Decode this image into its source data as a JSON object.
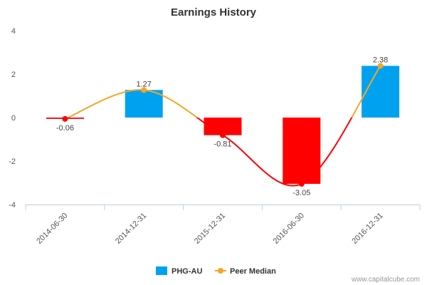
{
  "chart_data": {
    "type": "bar",
    "title": "Earnings History",
    "categories": [
      "2014-06-30",
      "2014-12-31",
      "2015-12-31",
      "2016-06-30",
      "2016-12-31"
    ],
    "ylim": [
      -4,
      4
    ],
    "yticks": [
      4,
      2,
      0,
      -2,
      -4
    ],
    "series": [
      {
        "name": "PHG-AU",
        "kind": "bar",
        "values": [
          -0.06,
          1.27,
          -0.81,
          -3.05,
          2.38
        ],
        "data_labels": [
          "-0.06",
          "1.27",
          "-0.81",
          "-3.05",
          "2.38"
        ],
        "color_positive": "#00a2ef",
        "color_negative": "#ff0000"
      },
      {
        "name": "Peer Median",
        "kind": "line",
        "values": [
          -0.06,
          1.27,
          -0.81,
          -3.05,
          2.38
        ],
        "color": "#f6a623",
        "negative_color": "#ff0000"
      }
    ],
    "grid": false,
    "legend_position": "bottom-center",
    "credit": "www.capitalcube.com"
  }
}
